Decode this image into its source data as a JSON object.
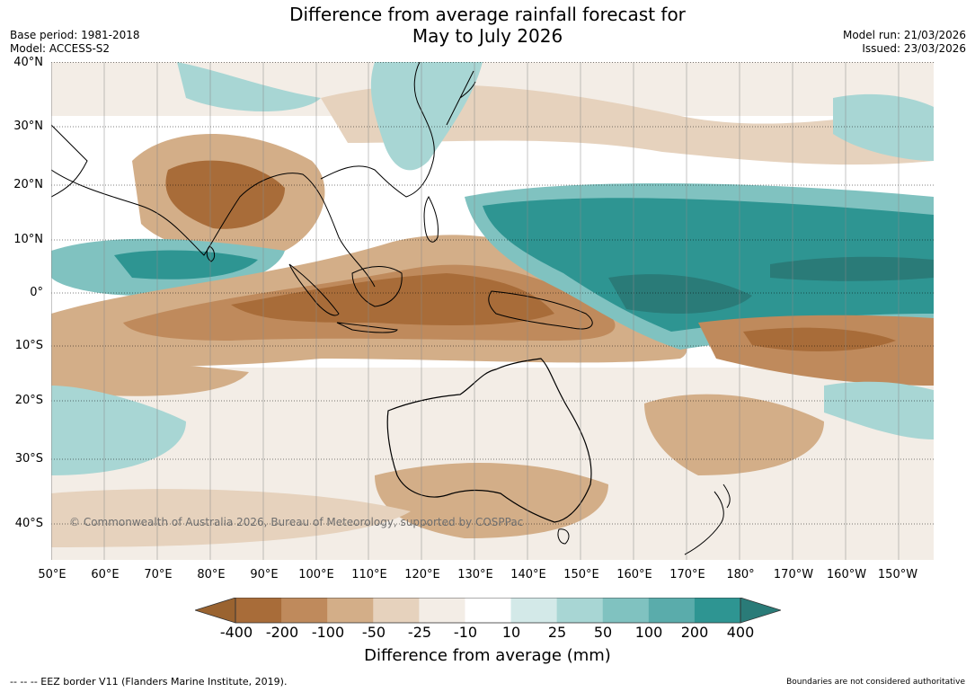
{
  "title": {
    "line1": "Difference from average rainfall forecast for",
    "line2": "May to July 2026"
  },
  "meta_left": {
    "base_period": "Base period: 1981-2018",
    "model": "Model: ACCESS-S2"
  },
  "meta_right": {
    "model_run": "Model run: 21/03/2026",
    "issued": "Issued: 23/03/2026"
  },
  "lat_labels": [
    "40°N",
    "30°N",
    "20°N",
    "10°N",
    "0°",
    "10°S",
    "20°S",
    "30°S",
    "40°S"
  ],
  "lon_labels": [
    "50°E",
    "60°E",
    "70°E",
    "80°E",
    "90°E",
    "100°E",
    "110°E",
    "120°E",
    "130°E",
    "140°E",
    "150°E",
    "160°E",
    "170°E",
    "180°",
    "170°W",
    "160°W",
    "150°W"
  ],
  "copyright": "© Commonwealth of Australia 2026, Bureau of Meteorology, supported by COSPPac",
  "colorbar": {
    "ticks": [
      "-400",
      "-200",
      "-100",
      "-50",
      "-25",
      "-10",
      "10",
      "25",
      "50",
      "100",
      "200",
      "400"
    ],
    "colors": [
      "#9a6330",
      "#a86c39",
      "#bf8a5c",
      "#d3ae88",
      "#e6d2bd",
      "#f3ede6",
      "#ffffff",
      "#d3e9e8",
      "#a8d6d4",
      "#80c2c0",
      "#5aacab",
      "#2e9592",
      "#2a7b78"
    ],
    "label": "Difference from average (mm)"
  },
  "footer": {
    "eez": "--  --  -- EEZ border V11 (Flanders Marine Institute, 2019).",
    "disclaimer": "Boundaries are not considered authoritative"
  }
}
